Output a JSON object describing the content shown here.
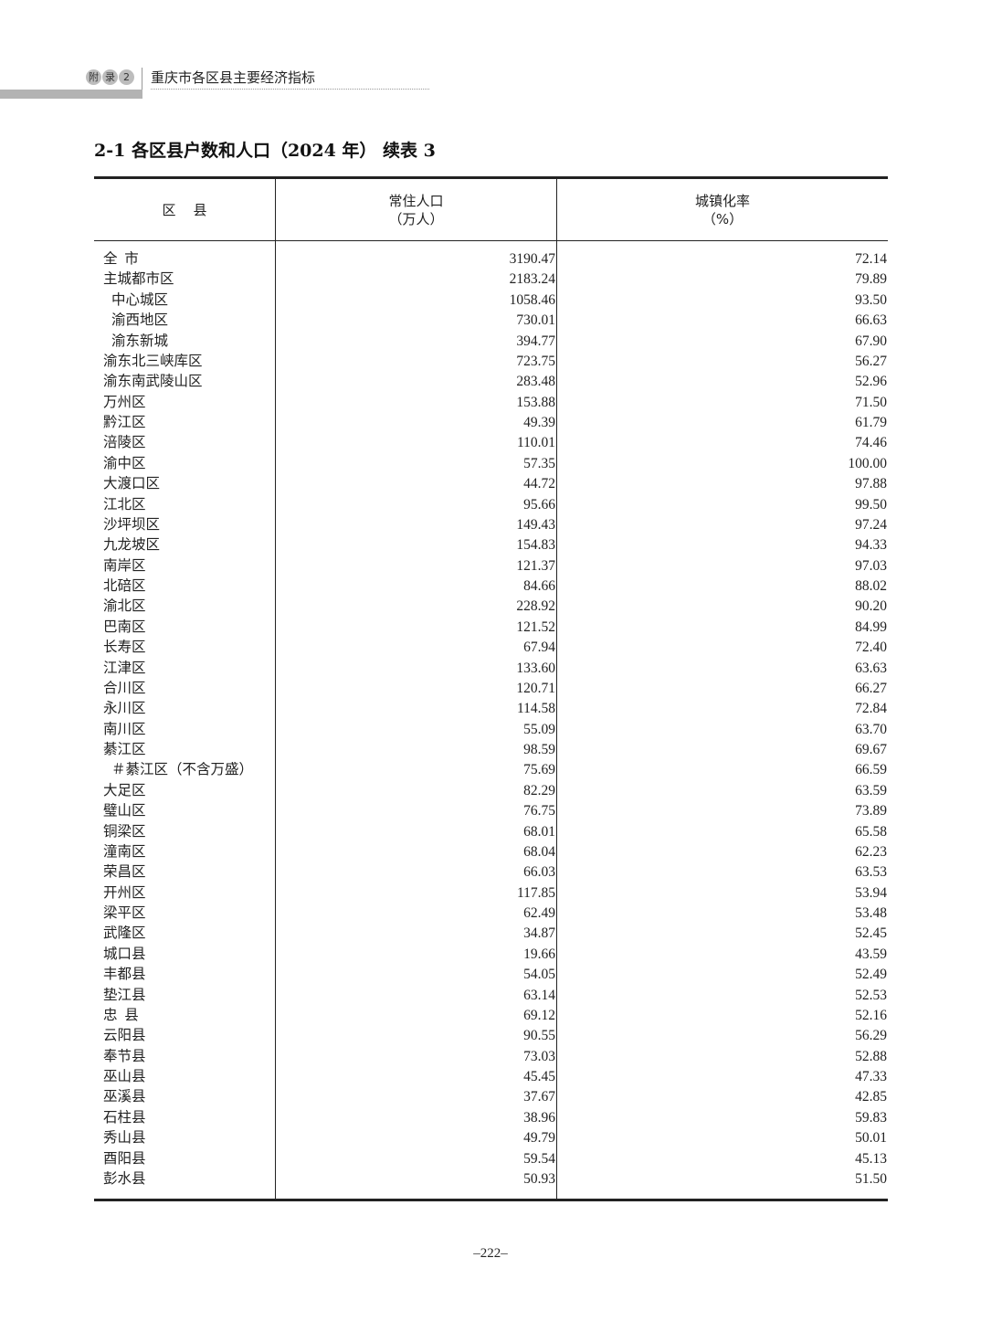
{
  "running_header": {
    "badge": [
      "附",
      "录",
      "2"
    ],
    "title": "重庆市各区县主要经济指标"
  },
  "table_title": "2-1  各区县户数和人口（2024 年） 续表 3",
  "columns": [
    {
      "label": "区    县"
    },
    {
      "label": "常住人口",
      "unit": "（万人）"
    },
    {
      "label": "城镇化率",
      "unit": "（%）"
    }
  ],
  "rows": [
    {
      "name": "全  市",
      "level": 0,
      "population": "3190.47",
      "urbanization": "72.14"
    },
    {
      "name": "主城都市区",
      "level": 0,
      "population": "2183.24",
      "urbanization": "79.89"
    },
    {
      "name": "中心城区",
      "level": 1,
      "population": "1058.46",
      "urbanization": "93.50"
    },
    {
      "name": "渝西地区",
      "level": 1,
      "population": "730.01",
      "urbanization": "66.63"
    },
    {
      "name": "渝东新城",
      "level": 1,
      "population": "394.77",
      "urbanization": "67.90"
    },
    {
      "name": "渝东北三峡库区",
      "level": 0,
      "population": "723.75",
      "urbanization": "56.27"
    },
    {
      "name": "渝东南武陵山区",
      "level": 0,
      "population": "283.48",
      "urbanization": "52.96"
    },
    {
      "name": "万州区",
      "level": 0,
      "population": "153.88",
      "urbanization": "71.50"
    },
    {
      "name": "黔江区",
      "level": 0,
      "population": "49.39",
      "urbanization": "61.79"
    },
    {
      "name": "涪陵区",
      "level": 0,
      "population": "110.01",
      "urbanization": "74.46"
    },
    {
      "name": "渝中区",
      "level": 0,
      "population": "57.35",
      "urbanization": "100.00"
    },
    {
      "name": "大渡口区",
      "level": 0,
      "population": "44.72",
      "urbanization": "97.88"
    },
    {
      "name": "江北区",
      "level": 0,
      "population": "95.66",
      "urbanization": "99.50"
    },
    {
      "name": "沙坪坝区",
      "level": 0,
      "population": "149.43",
      "urbanization": "97.24"
    },
    {
      "name": "九龙坡区",
      "level": 0,
      "population": "154.83",
      "urbanization": "94.33"
    },
    {
      "name": "南岸区",
      "level": 0,
      "population": "121.37",
      "urbanization": "97.03"
    },
    {
      "name": "北碚区",
      "level": 0,
      "population": "84.66",
      "urbanization": "88.02"
    },
    {
      "name": "渝北区",
      "level": 0,
      "population": "228.92",
      "urbanization": "90.20"
    },
    {
      "name": "巴南区",
      "level": 0,
      "population": "121.52",
      "urbanization": "84.99"
    },
    {
      "name": "长寿区",
      "level": 0,
      "population": "67.94",
      "urbanization": "72.40"
    },
    {
      "name": "江津区",
      "level": 0,
      "population": "133.60",
      "urbanization": "63.63"
    },
    {
      "name": "合川区",
      "level": 0,
      "population": "120.71",
      "urbanization": "66.27"
    },
    {
      "name": "永川区",
      "level": 0,
      "population": "114.58",
      "urbanization": "72.84"
    },
    {
      "name": "南川区",
      "level": 0,
      "population": "55.09",
      "urbanization": "63.70"
    },
    {
      "name": "綦江区",
      "level": 0,
      "population": "98.59",
      "urbanization": "69.67"
    },
    {
      "name": "＃綦江区（不含万盛）",
      "level": 1,
      "population": "75.69",
      "urbanization": "66.59"
    },
    {
      "name": "大足区",
      "level": 0,
      "population": "82.29",
      "urbanization": "63.59"
    },
    {
      "name": "璧山区",
      "level": 0,
      "population": "76.75",
      "urbanization": "73.89"
    },
    {
      "name": "铜梁区",
      "level": 0,
      "population": "68.01",
      "urbanization": "65.58"
    },
    {
      "name": "潼南区",
      "level": 0,
      "population": "68.04",
      "urbanization": "62.23"
    },
    {
      "name": "荣昌区",
      "level": 0,
      "population": "66.03",
      "urbanization": "63.53"
    },
    {
      "name": "开州区",
      "level": 0,
      "population": "117.85",
      "urbanization": "53.94"
    },
    {
      "name": "梁平区",
      "level": 0,
      "population": "62.49",
      "urbanization": "53.48"
    },
    {
      "name": "武隆区",
      "level": 0,
      "population": "34.87",
      "urbanization": "52.45"
    },
    {
      "name": "城口县",
      "level": 0,
      "population": "19.66",
      "urbanization": "43.59"
    },
    {
      "name": "丰都县",
      "level": 0,
      "population": "54.05",
      "urbanization": "52.49"
    },
    {
      "name": "垫江县",
      "level": 0,
      "population": "63.14",
      "urbanization": "52.53"
    },
    {
      "name": "忠  县",
      "level": 0,
      "population": "69.12",
      "urbanization": "52.16"
    },
    {
      "name": "云阳县",
      "level": 0,
      "population": "90.55",
      "urbanization": "56.29"
    },
    {
      "name": "奉节县",
      "level": 0,
      "population": "73.03",
      "urbanization": "52.88"
    },
    {
      "name": "巫山县",
      "level": 0,
      "population": "45.45",
      "urbanization": "47.33"
    },
    {
      "name": "巫溪县",
      "level": 0,
      "population": "37.67",
      "urbanization": "42.85"
    },
    {
      "name": "石柱县",
      "level": 0,
      "population": "38.96",
      "urbanization": "59.83"
    },
    {
      "name": "秀山县",
      "level": 0,
      "population": "49.79",
      "urbanization": "50.01"
    },
    {
      "name": "酉阳县",
      "level": 0,
      "population": "59.54",
      "urbanization": "45.13"
    },
    {
      "name": "彭水县",
      "level": 0,
      "population": "50.93",
      "urbanization": "51.50"
    }
  ],
  "page_number": "–222–"
}
